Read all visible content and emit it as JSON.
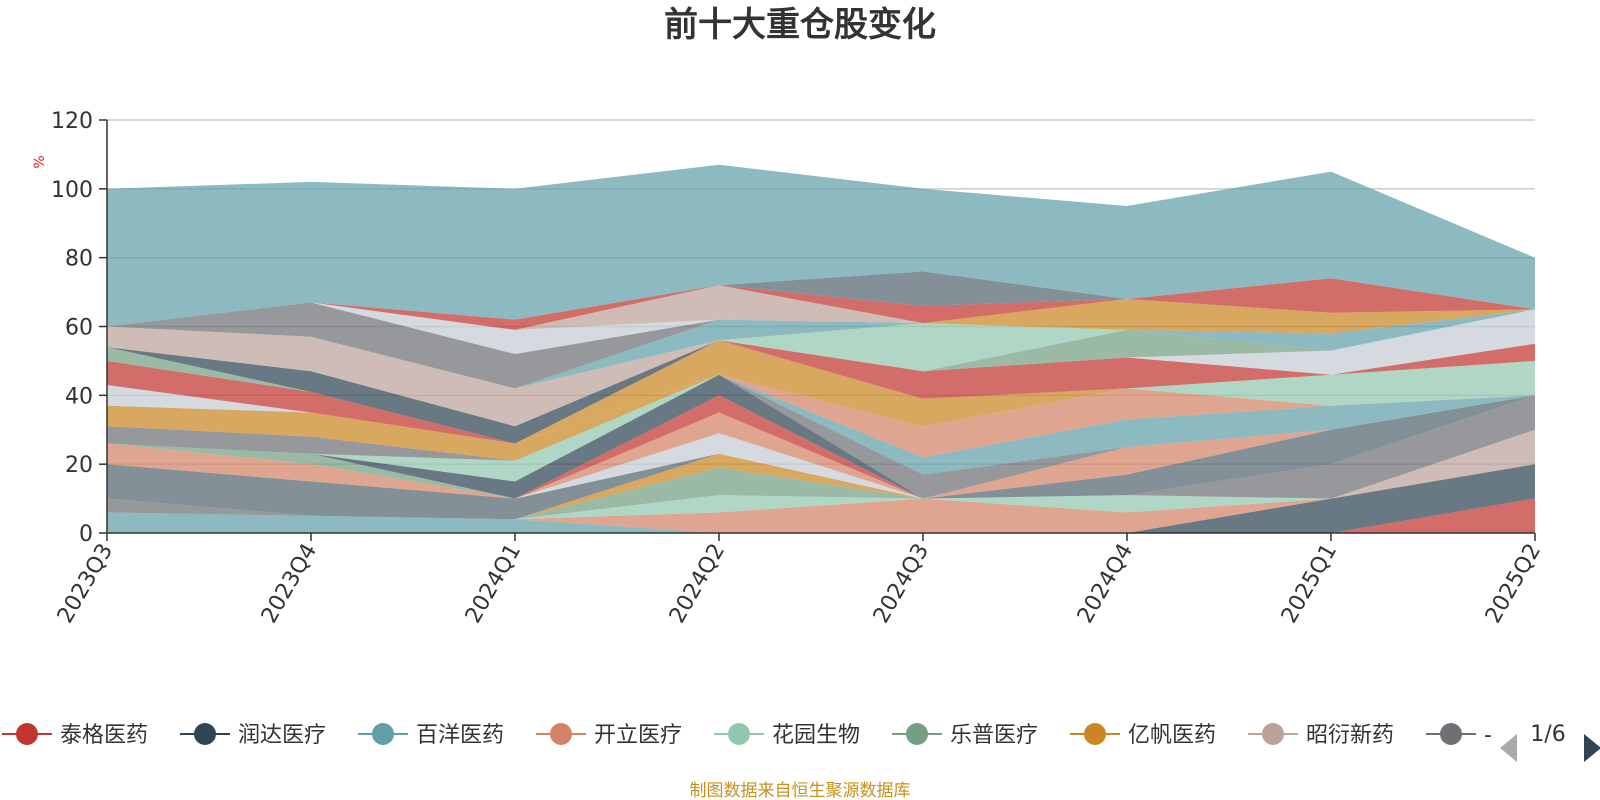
{
  "chart_data": {
    "type": "area",
    "stacked": true,
    "title": "前十大重仓股变化",
    "y_unit": "%",
    "ylim": [
      0,
      120
    ],
    "y_ticks": [
      0,
      20,
      40,
      60,
      80,
      100,
      120
    ],
    "grid": true,
    "legend_position": "bottom",
    "x": [
      "2023Q3",
      "2023Q4",
      "2024Q1",
      "2024Q2",
      "2024Q3",
      "2024Q4",
      "2025Q1",
      "2025Q2"
    ],
    "series": [
      {
        "name": "泰格医药",
        "color": "#c23531",
        "values": [
          0,
          0,
          0,
          0,
          0,
          0,
          0,
          10
        ]
      },
      {
        "name": "润达医疗",
        "color": "#2f4554",
        "values": [
          0,
          0,
          0,
          0,
          0,
          0,
          10,
          10
        ]
      },
      {
        "name": "百洋医药",
        "color": "#61a0a8",
        "values": [
          6,
          5,
          4,
          0,
          0,
          0,
          0,
          0
        ]
      },
      {
        "name": "开立医疗",
        "color": "#d48265",
        "values": [
          0,
          0,
          0,
          6,
          10,
          6,
          0,
          0
        ]
      },
      {
        "name": "花园生物",
        "color": "#91c7ae",
        "values": [
          0,
          0,
          0,
          5,
          0,
          5,
          0,
          0
        ]
      },
      {
        "name": "乐普医疗",
        "color": "#749f83",
        "values": [
          0,
          0,
          0,
          8,
          0,
          0,
          0,
          0
        ]
      },
      {
        "name": "亿帆医药",
        "color": "#ca8622",
        "values": [
          0,
          0,
          0,
          4,
          0,
          0,
          0,
          0
        ]
      },
      {
        "name": "昭衍新药",
        "color": "#bda29a",
        "values": [
          0,
          0,
          0,
          0,
          0,
          0,
          0,
          10
        ]
      },
      {
        "name": "-",
        "color": "#6e7074",
        "values": [
          4,
          0,
          0,
          0,
          0,
          0,
          10,
          10
        ]
      },
      {
        "name": "",
        "color": "#546570",
        "values": [
          10,
          10,
          6,
          0,
          0,
          6,
          10,
          0
        ]
      },
      {
        "name": "",
        "color": "#c4ccd3",
        "values": [
          0,
          0,
          0,
          6,
          0,
          0,
          0,
          0
        ]
      },
      {
        "name": "",
        "color": "#d48265",
        "values": [
          6,
          5,
          0,
          6,
          0,
          8,
          0,
          0
        ]
      },
      {
        "name": "",
        "color": "#c23531",
        "values": [
          0,
          0,
          0,
          5,
          0,
          0,
          0,
          0
        ]
      },
      {
        "name": "",
        "color": "#749f83",
        "values": [
          0,
          3,
          0,
          0,
          0,
          0,
          0,
          0
        ]
      },
      {
        "name": "",
        "color": "#2f4554",
        "values": [
          0,
          0,
          5,
          6,
          0,
          0,
          0,
          0
        ]
      },
      {
        "name": "",
        "color": "#91c7ae",
        "values": [
          0,
          0,
          6,
          0,
          0,
          0,
          0,
          0
        ]
      },
      {
        "name": "",
        "color": "#6e7074",
        "values": [
          5,
          5,
          0,
          0,
          7,
          0,
          0,
          0
        ]
      },
      {
        "name": "",
        "color": "#ca8622",
        "values": [
          6,
          7,
          5,
          0,
          0,
          0,
          0,
          0
        ]
      },
      {
        "name": "",
        "color": "#c4ccd3",
        "values": [
          6,
          0,
          0,
          0,
          0,
          0,
          0,
          0
        ]
      },
      {
        "name": "",
        "color": "#61a0a8",
        "values": [
          0,
          0,
          0,
          0,
          5,
          8,
          7,
          0
        ]
      },
      {
        "name": "",
        "color": "#d48265",
        "values": [
          0,
          0,
          0,
          0,
          9,
          9,
          0,
          0
        ]
      },
      {
        "name": "",
        "color": "#91c7ae",
        "values": [
          0,
          0,
          0,
          0,
          0,
          0,
          9,
          10
        ]
      },
      {
        "name": "",
        "color": "#749f83",
        "values": [
          0,
          0,
          0,
          0,
          0,
          0,
          0,
          0
        ]
      },
      {
        "name": "",
        "color": "#ca8622",
        "values": [
          0,
          0,
          0,
          10,
          8,
          0,
          0,
          0
        ]
      },
      {
        "name": "",
        "color": "#c23531",
        "values": [
          7,
          6,
          0,
          0,
          8,
          9,
          0,
          5
        ]
      },
      {
        "name": "",
        "color": "#c4ccd3",
        "values": [
          0,
          0,
          0,
          0,
          0,
          0,
          7,
          10
        ]
      },
      {
        "name": "",
        "color": "#749f83",
        "values": [
          4,
          0,
          0,
          0,
          0,
          8,
          0,
          0
        ]
      },
      {
        "name": "",
        "color": "#2f4554",
        "values": [
          0,
          6,
          5,
          0,
          0,
          0,
          0,
          0
        ]
      },
      {
        "name": "",
        "color": "#bda29a",
        "values": [
          6,
          10,
          11,
          0,
          0,
          0,
          0,
          0
        ]
      },
      {
        "name": "",
        "color": "#91c7ae",
        "values": [
          0,
          0,
          0,
          0,
          14,
          0,
          0,
          0
        ]
      },
      {
        "name": "",
        "color": "#61a0a8",
        "values": [
          0,
          0,
          0,
          6,
          0,
          0,
          5,
          0
        ]
      },
      {
        "name": "",
        "color": "#ca8622",
        "values": [
          0,
          0,
          0,
          0,
          0,
          9,
          6,
          0
        ]
      },
      {
        "name": "",
        "color": "#6e7074",
        "values": [
          0,
          10,
          10,
          0,
          0,
          0,
          0,
          0
        ]
      },
      {
        "name": "",
        "color": "#c4ccd3",
        "values": [
          0,
          0,
          7,
          0,
          0,
          0,
          0,
          0
        ]
      },
      {
        "name": "",
        "color": "#bda29a",
        "values": [
          0,
          0,
          0,
          10,
          0,
          0,
          0,
          0
        ]
      },
      {
        "name": "",
        "color": "#c23531",
        "values": [
          0,
          0,
          3,
          0,
          5,
          0,
          10,
          0
        ]
      },
      {
        "name": "",
        "color": "#546570",
        "values": [
          0,
          0,
          0,
          0,
          10,
          0,
          0,
          0
        ]
      },
      {
        "name": "",
        "color": "#c23531",
        "values": [
          0,
          0,
          0,
          0,
          0,
          0,
          0,
          0
        ]
      },
      {
        "name": "",
        "color": "#61a0a8",
        "values": [
          40,
          35,
          38,
          35,
          24,
          27,
          31,
          15
        ]
      }
    ]
  },
  "legend": {
    "items": [
      {
        "name": "泰格医药",
        "color": "#c23531"
      },
      {
        "name": "润达医疗",
        "color": "#2f4554"
      },
      {
        "name": "百洋医药",
        "color": "#61a0a8"
      },
      {
        "name": "开立医疗",
        "color": "#d48265"
      },
      {
        "name": "花园生物",
        "color": "#91c7ae"
      },
      {
        "name": "乐普医疗",
        "color": "#749f83"
      },
      {
        "name": "亿帆医药",
        "color": "#ca8622"
      },
      {
        "name": "昭衍新药",
        "color": "#bda29a"
      },
      {
        "name": "-",
        "color": "#6e7074"
      }
    ],
    "page": "1/6"
  },
  "source": "制图数据来自恒生聚源数据库"
}
